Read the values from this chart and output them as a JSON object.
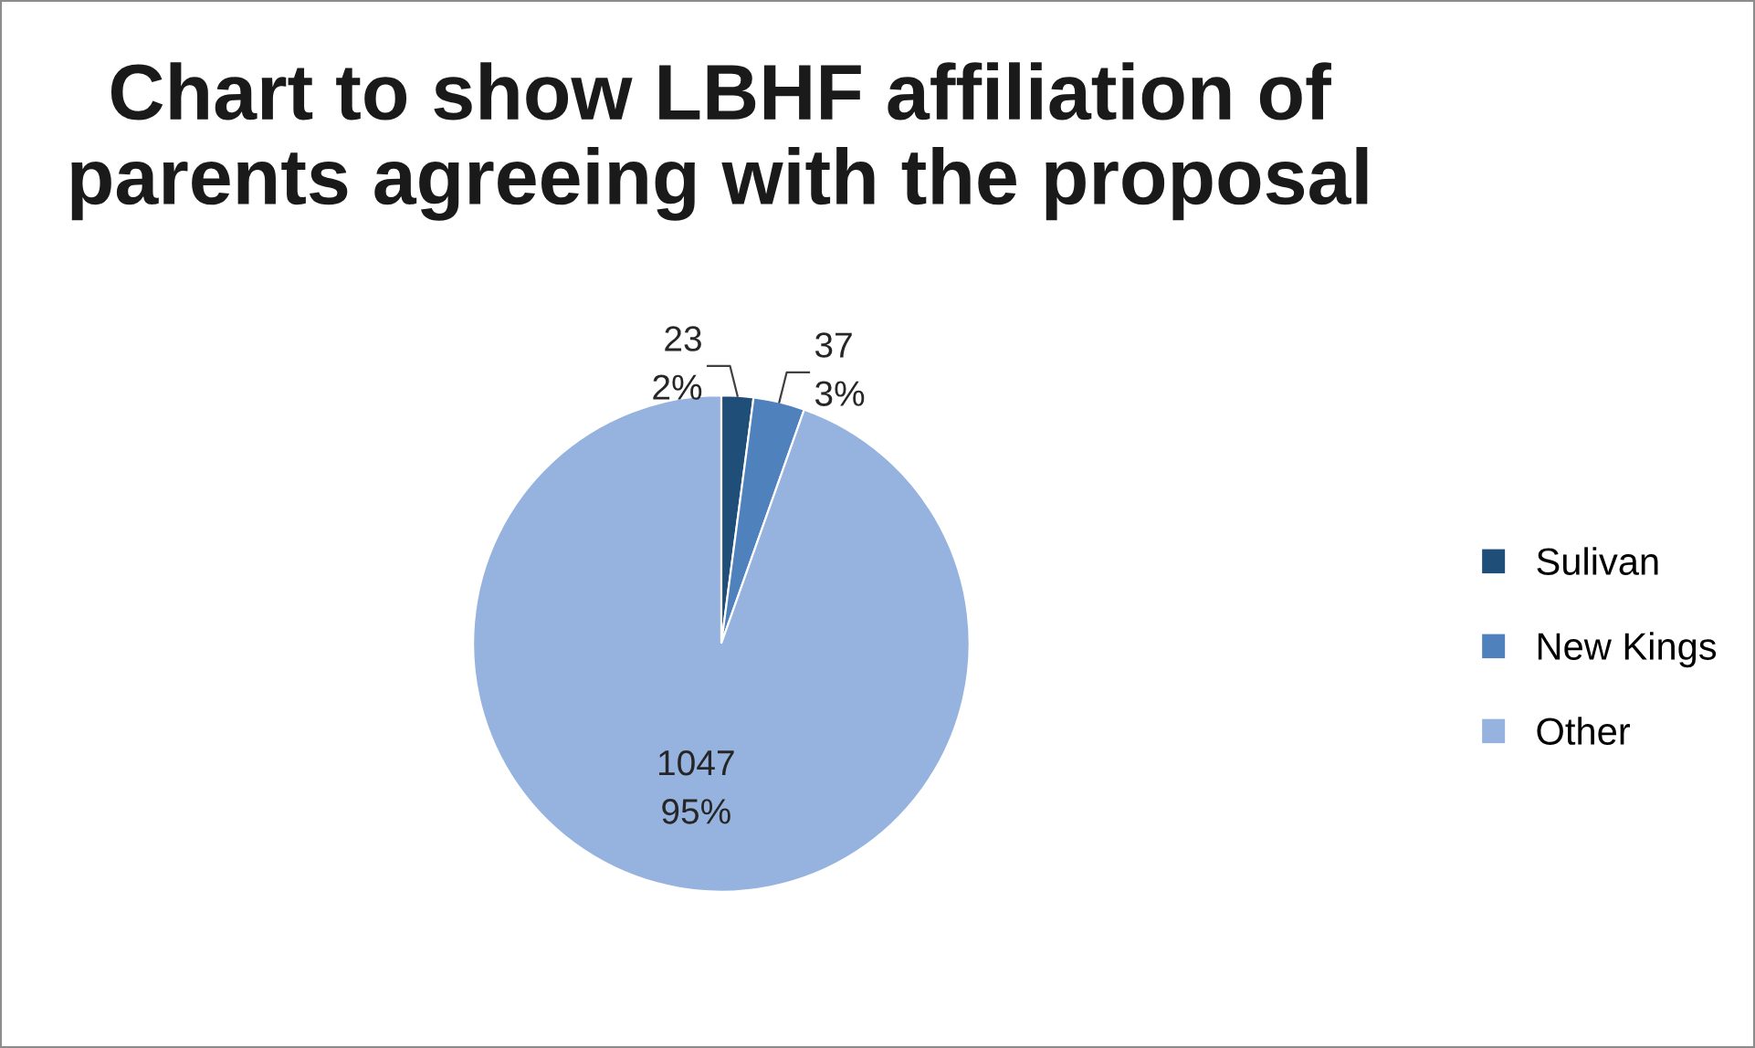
{
  "chart_data": {
    "type": "pie",
    "title": "Chart to show LBHF affiliation of\nparents agreeing with the proposal",
    "categories": [
      "Sulivan",
      "New Kings",
      "Other"
    ],
    "values": [
      23,
      37,
      1047
    ],
    "value_labels": [
      "23\n2%",
      "37\n3%",
      "1047\n95%"
    ],
    "colors": [
      "#1f4e79",
      "#4f81bd",
      "#95b3de"
    ],
    "legend": "right"
  }
}
